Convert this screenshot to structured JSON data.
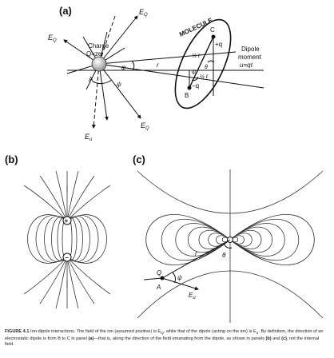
{
  "panel_a": {
    "label": "(a)",
    "eq_top": "E",
    "eq_left": "E",
    "eq_bottom": "E",
    "eu_label": "E",
    "sub_q": "Q",
    "sub_u": "u",
    "charge_label": "Charge",
    "charge_formula": "Q=ze",
    "point_a": "A",
    "phi": "φ",
    "psi": "ψ",
    "r": "r",
    "molecule": "MOLECULE",
    "point_c": "C",
    "point_b": "B",
    "plus_q": "+q",
    "minus_q": "−q",
    "half_l_1": "½ ℓ",
    "half_l_2": "½ ℓ",
    "theta": "θ",
    "psi2": "ψ",
    "dipole_label": "Dipole",
    "moment_label": "moment",
    "moment_formula": "u=qℓ"
  },
  "panel_b": {
    "label": "(b)",
    "plus": "+",
    "minus": "−"
  },
  "panel_c": {
    "label": "(c)",
    "q": "Q",
    "a": "A",
    "r": "r",
    "psi": "ψ",
    "theta": "θ",
    "eu": "E",
    "sub_u": "u"
  },
  "caption": {
    "figure": "FIGURE 4.1",
    "text": "Ion-dipole interactions. The field of the ion (assumed positive) is E",
    "text2": ", while that of the dipole (acting on the ion) is E",
    "text3": ". By definition, the direction of an electrostatic dipole is from B to C in panel ",
    "pa": "(a)",
    "text4": "—that is, along the direction of the field emanating from the dipole, as shown in panels ",
    "pb": "(b)",
    "and": " and ",
    "pc": "(c)",
    "text5": ", not the internal field.",
    "sub_q": "Q",
    "sub_u": "u"
  }
}
